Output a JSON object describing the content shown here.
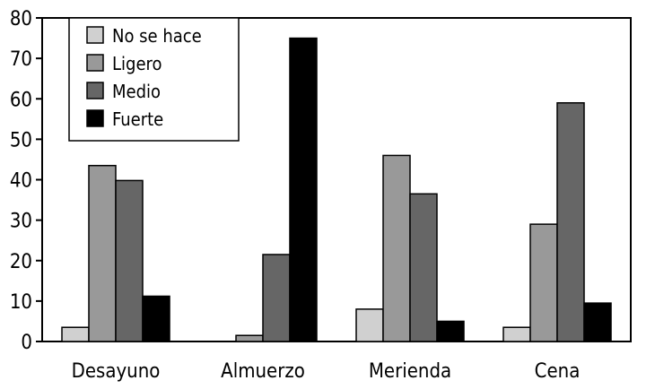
{
  "chart_data": {
    "type": "bar",
    "categories": [
      "Desayuno",
      "Almuerzo",
      "Merienda",
      "Cena"
    ],
    "series": [
      {
        "name": "No se hace",
        "color": "#d0d0d0",
        "values": [
          3.5,
          0,
          8,
          3.5
        ]
      },
      {
        "name": "Ligero",
        "color": "#999999",
        "values": [
          43.5,
          1.5,
          46,
          29
        ]
      },
      {
        "name": "Medio",
        "color": "#666666",
        "values": [
          39.8,
          21.5,
          36.5,
          59
        ]
      },
      {
        "name": "Fuerte",
        "color": "#000000",
        "values": [
          11.2,
          75,
          5,
          9.5
        ]
      }
    ],
    "yticks": [
      0,
      10,
      20,
      30,
      40,
      50,
      60,
      70,
      80
    ],
    "ylim": [
      0,
      80
    ],
    "legend_position": "top-left",
    "grid": false
  }
}
